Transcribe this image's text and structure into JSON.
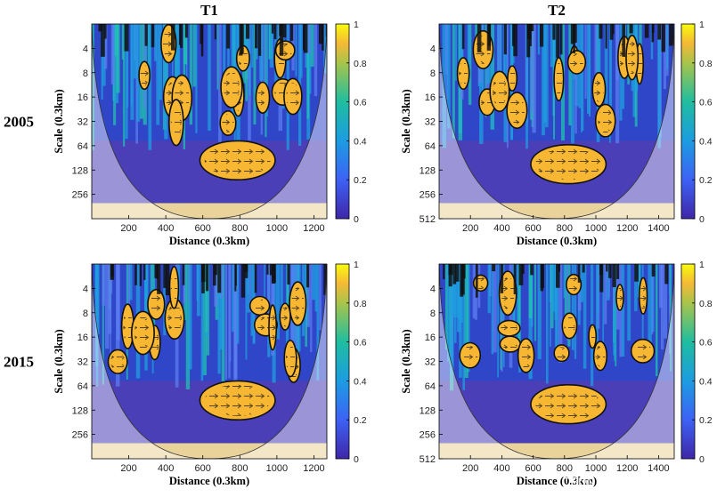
{
  "chart_data": {
    "type": "heatmap",
    "description_columns": [
      "T1",
      "T2"
    ],
    "row_labels": [
      "2005",
      "2015"
    ],
    "xlabel": "Distance (0.3km)",
    "ylabel": "Scale (0.3km)",
    "colorbar": {
      "min": 0,
      "max": 1,
      "ticks": [
        "0",
        "0.2",
        "0.4",
        "0.6",
        "0.8",
        "1"
      ]
    },
    "panels": [
      {
        "id": "t1-2005",
        "column": "T1",
        "row": "2005",
        "xlim": [
          0,
          1270
        ],
        "xticks": [
          "200",
          "400",
          "600",
          "800",
          "1000",
          "1200"
        ],
        "ylim_log2": [
          1,
          9
        ],
        "yticks": [
          "4",
          "8",
          "16",
          "32",
          "64",
          "128",
          "256"
        ]
      },
      {
        "id": "t2-2005",
        "column": "T2",
        "row": "2005",
        "xlim": [
          0,
          1500
        ],
        "xticks": [
          "200",
          "400",
          "600",
          "800",
          "1000",
          "1200",
          "1400"
        ],
        "ylim_log2": [
          1,
          9
        ],
        "yticks": [
          "4",
          "8",
          "16",
          "32",
          "64",
          "128",
          "256",
          "512"
        ]
      },
      {
        "id": "t1-2015",
        "column": "T1",
        "row": "2015",
        "xlim": [
          0,
          1270
        ],
        "xticks": [
          "200",
          "400",
          "600",
          "800",
          "1000",
          "1200"
        ],
        "ylim_log2": [
          1,
          9
        ],
        "yticks": [
          "4",
          "8",
          "16",
          "32",
          "64",
          "128",
          "256"
        ]
      },
      {
        "id": "t2-2015",
        "column": "T2",
        "row": "2015",
        "xlim": [
          0,
          1500
        ],
        "xticks": [
          "200",
          "400",
          "600",
          "800",
          "1000",
          "1200",
          "1400"
        ],
        "ylim_log2": [
          1,
          9
        ],
        "yticks": [
          "4",
          "8",
          "16",
          "32",
          "64",
          "128",
          "256",
          "512"
        ]
      }
    ]
  },
  "watermark": "CSDN @有梦想的Frank博士"
}
